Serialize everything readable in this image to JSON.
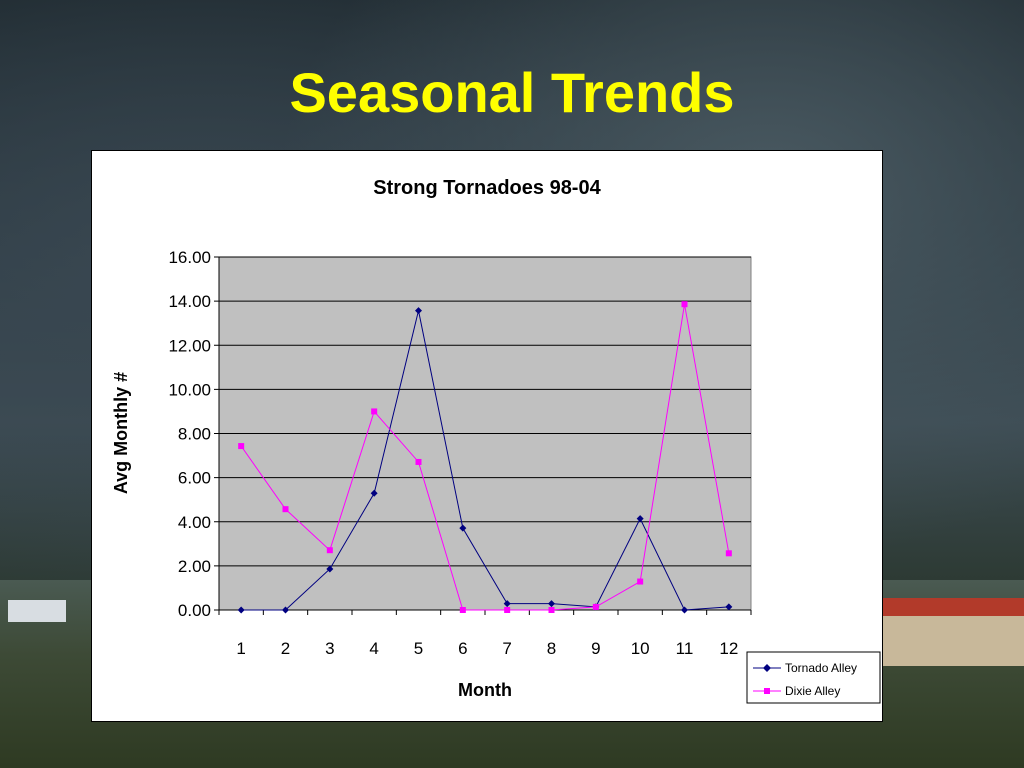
{
  "slide": {
    "title": "Seasonal Trends",
    "title_color": "#ffff00"
  },
  "chart_data": {
    "type": "line",
    "title": "Strong Tornadoes 98-04",
    "xlabel": "Month",
    "ylabel": "Avg Monthly #",
    "categories": [
      "1",
      "2",
      "3",
      "4",
      "5",
      "6",
      "7",
      "8",
      "9",
      "10",
      "11",
      "12"
    ],
    "ylim": [
      0,
      16
    ],
    "yticks": [
      "0.00",
      "2.00",
      "4.00",
      "6.00",
      "8.00",
      "10.00",
      "12.00",
      "14.00",
      "16.00"
    ],
    "grid": true,
    "plot_background": "#c0c0c0",
    "legend_position": "bottom-right",
    "series": [
      {
        "name": "Tornado Alley",
        "color": "#000080",
        "marker": "diamond",
        "values": [
          0,
          0,
          1.86,
          5.29,
          13.57,
          3.71,
          0.29,
          0.29,
          0.14,
          4.14,
          0,
          0.14
        ]
      },
      {
        "name": "Dixie Alley",
        "color": "#ff00ff",
        "marker": "square",
        "values": [
          7.43,
          4.57,
          2.71,
          9.0,
          6.71,
          0,
          0,
          0,
          0.14,
          1.29,
          13.86,
          2.57
        ]
      }
    ]
  }
}
